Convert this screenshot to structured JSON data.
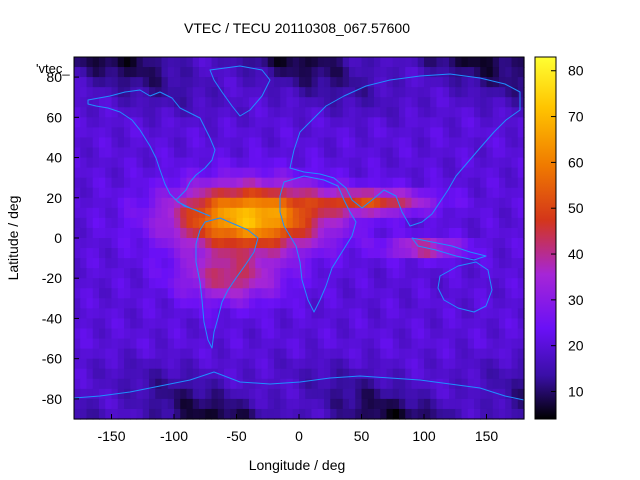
{
  "chart_data": {
    "type": "heatmap",
    "title": "VTEC / TECU 20110308_067.57600",
    "xlabel": "Longitude / deg",
    "ylabel": "Latitude / deg",
    "key_label": "'vtec_",
    "xlim": [
      -180,
      180
    ],
    "ylim": [
      -90,
      90
    ],
    "x_ticks": [
      -150,
      -100,
      -50,
      0,
      50,
      100,
      150
    ],
    "y_ticks": [
      -80,
      -60,
      -40,
      -20,
      0,
      20,
      40,
      60,
      80
    ],
    "colorbar": {
      "range": [
        4,
        83
      ],
      "ticks": [
        10,
        20,
        30,
        40,
        50,
        60,
        70,
        80
      ],
      "palette": [
        "#000000",
        "#3a0fa6",
        "#6a10f6",
        "#a626d6",
        "#d4361a",
        "#f07a00",
        "#ffc400",
        "#ffff33"
      ],
      "palette_stops": [
        0,
        0.12,
        0.25,
        0.4,
        0.55,
        0.7,
        0.86,
        1
      ]
    },
    "grid": false,
    "legend": "top-left",
    "overlay": "coastlines",
    "overlay_color": "#1e90ff",
    "features": {
      "background_tec": 20,
      "main_crest": {
        "lon": -40,
        "lat": 10,
        "peak": 68,
        "lon_width": 60,
        "lat_width": 16
      },
      "secondary_crest": {
        "lon": -55,
        "lat": -20,
        "peak": 48,
        "lon_width": 40,
        "lat_width": 12
      },
      "north_band": {
        "lon": 60,
        "lat": 18,
        "peak": 50,
        "lon_width": 45,
        "lat_width": 6
      },
      "east_band": {
        "lon": 100,
        "lat": -5,
        "peak": 45,
        "lon_width": 30,
        "lat_width": 5
      },
      "polar_minimum": 6
    }
  }
}
